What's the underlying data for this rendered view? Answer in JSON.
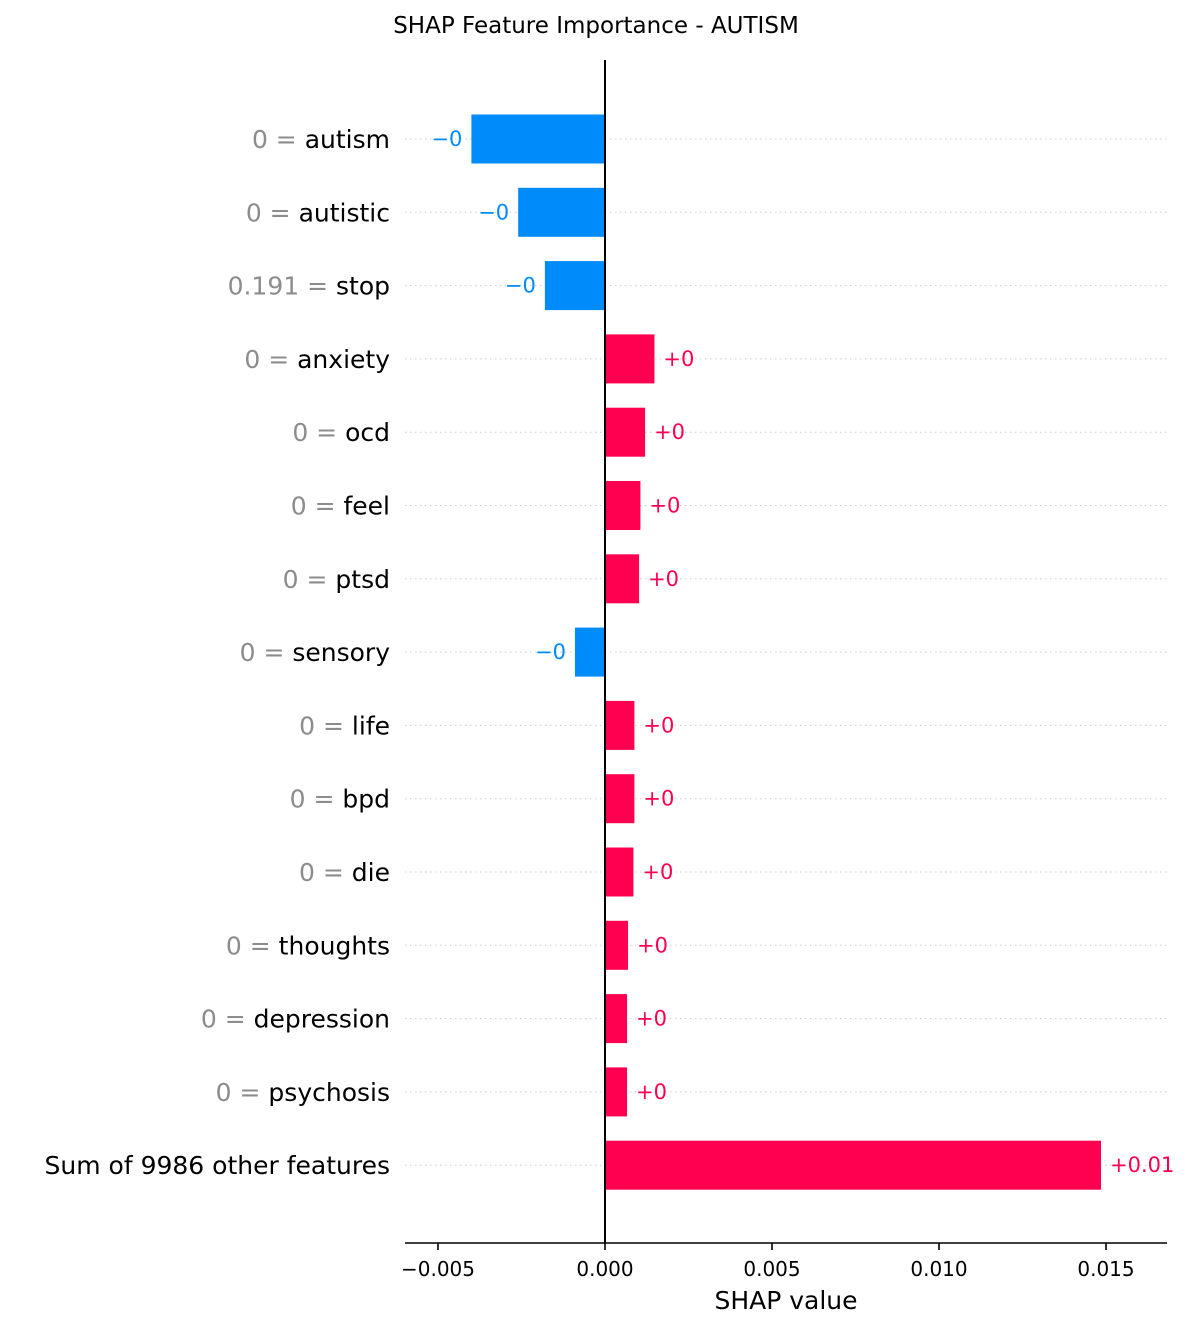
{
  "chart_data": {
    "type": "bar",
    "title": "SHAP Feature Importance - AUTISM",
    "xlabel": "SHAP value",
    "ylabel": "",
    "xlim": [
      -0.006,
      0.0169
    ],
    "grid": "dotted horizontal lines per feature",
    "xticks": [
      {
        "value": -0.005,
        "label": "−0.005"
      },
      {
        "value": 0.0,
        "label": "0.000"
      },
      {
        "value": 0.005,
        "label": "0.005"
      },
      {
        "value": 0.01,
        "label": "0.010"
      },
      {
        "value": 0.015,
        "label": "0.015"
      }
    ],
    "features": [
      {
        "value_text": "0 =",
        "name": "autism",
        "shap": -0.004,
        "label": "−0"
      },
      {
        "value_text": "0 =",
        "name": "autistic",
        "shap": -0.0026,
        "label": "−0"
      },
      {
        "value_text": "0.191 =",
        "name": "stop",
        "shap": -0.0018,
        "label": "−0"
      },
      {
        "value_text": "0 =",
        "name": "anxiety",
        "shap": 0.00148,
        "label": "+0"
      },
      {
        "value_text": "0 =",
        "name": "ocd",
        "shap": 0.0012,
        "label": "+0"
      },
      {
        "value_text": "0 =",
        "name": "feel",
        "shap": 0.00106,
        "label": "+0"
      },
      {
        "value_text": "0 =",
        "name": "ptsd",
        "shap": 0.00102,
        "label": "+0"
      },
      {
        "value_text": "0 =",
        "name": "sensory",
        "shap": -0.0009,
        "label": "−0"
      },
      {
        "value_text": "0 =",
        "name": "life",
        "shap": 0.00088,
        "label": "+0"
      },
      {
        "value_text": "0 =",
        "name": "bpd",
        "shap": 0.00088,
        "label": "+0"
      },
      {
        "value_text": "0 =",
        "name": "die",
        "shap": 0.00085,
        "label": "+0"
      },
      {
        "value_text": "0 =",
        "name": "thoughts",
        "shap": 0.00069,
        "label": "+0"
      },
      {
        "value_text": "0 =",
        "name": "depression",
        "shap": 0.00066,
        "label": "+0"
      },
      {
        "value_text": "0 =",
        "name": "psychosis",
        "shap": 0.00066,
        "label": "+0"
      },
      {
        "value_text": "",
        "name": "Sum of 9986 other features",
        "shap": 0.01485,
        "label": "+0.01"
      }
    ],
    "colors": {
      "positive": "#ff0051",
      "negative": "#008bfb",
      "grid": "#cccccc",
      "axis": "#000000",
      "feature_value_text": "#8c8c8c"
    }
  }
}
